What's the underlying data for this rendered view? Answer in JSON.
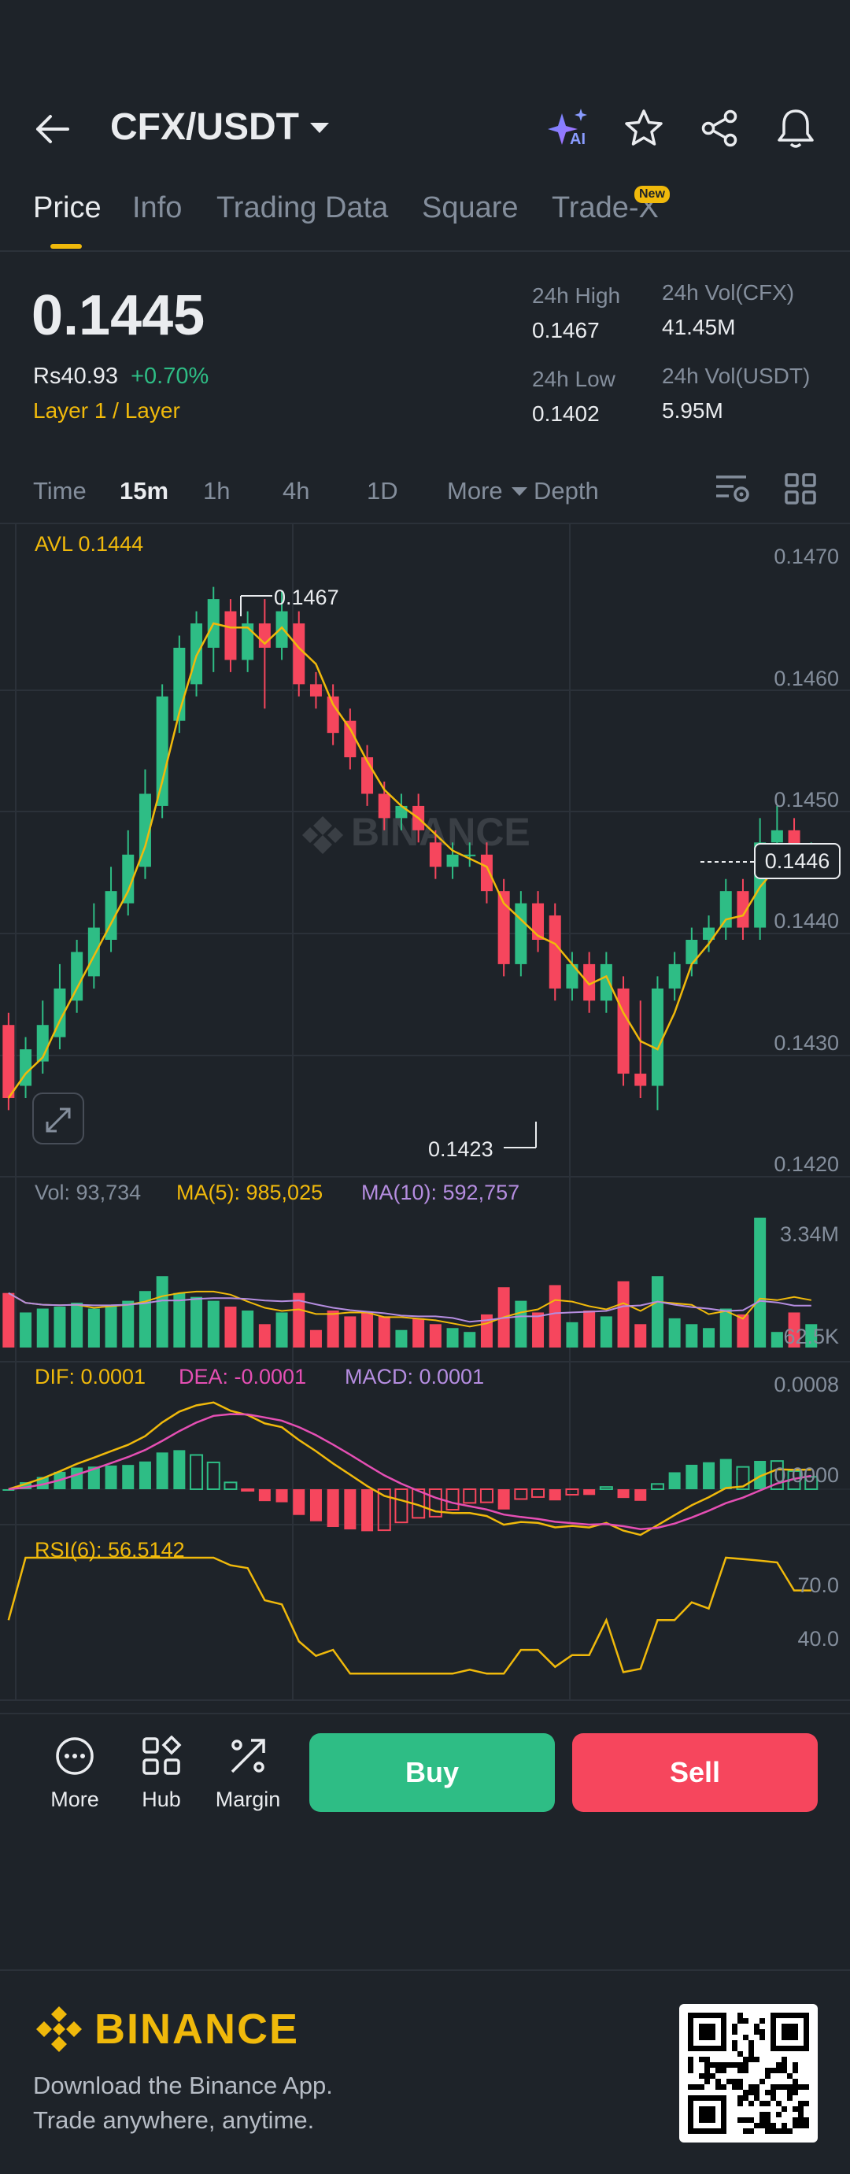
{
  "header": {
    "pair": "CFX/USDT",
    "back_icon": "arrow-left-icon",
    "ai_badge": "AI"
  },
  "tabs": [
    {
      "label": "Price",
      "active": true
    },
    {
      "label": "Info"
    },
    {
      "label": "Trading Data"
    },
    {
      "label": "Square"
    },
    {
      "label": "Trade-X",
      "badge": "New"
    }
  ],
  "price": {
    "last": "0.1445",
    "local": "Rs40.93",
    "change": "+0.70%",
    "tags": "Layer 1 / Layer"
  },
  "stats": {
    "high_label": "24h High",
    "high_value": "0.1467",
    "low_label": "24h Low",
    "low_value": "0.1402",
    "vol_base_label": "24h Vol(CFX)",
    "vol_base_value": "41.45M",
    "vol_quote_label": "24h Vol(USDT)",
    "vol_quote_value": "5.95M"
  },
  "intervals": {
    "time": "Time",
    "m15": "15m",
    "h1": "1h",
    "h4": "4h",
    "d1": "1D",
    "more": "More",
    "depth": "Depth"
  },
  "chart": {
    "avl": "AVL 0.1444",
    "price_axis": [
      "0.1470",
      "0.1460",
      "0.1450",
      "0.1440",
      "0.1430",
      "0.1420"
    ],
    "current_price_tag": "0.1446",
    "high_marker": "0.1467",
    "low_marker": "0.1423",
    "watermark": "BINANCE",
    "colors": {
      "up": "#2ebd85",
      "down": "#f6465d",
      "ma": "#f0b90b",
      "ma10": "#b58de0",
      "dea": "#e54fb4"
    }
  },
  "volume": {
    "vol": "Vol: 93,734",
    "ma5": "MA(5): 985,025",
    "ma10": "MA(10): 592,757",
    "axis_top": "3.34M",
    "axis_bottom": "62.5K"
  },
  "macd": {
    "dif": "DIF: 0.0001",
    "dea": "DEA: -0.0001",
    "macd": "MACD: 0.0001",
    "axis_top": "0.0008",
    "axis_mid": "0.0000"
  },
  "rsi": {
    "label": "RSI(6): 56.5142",
    "axis_70": "70.0",
    "axis_40": "40.0"
  },
  "bottom_bar": {
    "more": "More",
    "hub": "Hub",
    "margin": "Margin",
    "buy": "Buy",
    "sell": "Sell"
  },
  "footer": {
    "brand": "BINANCE",
    "line1": "Download the Binance App.",
    "line2": "Trade anywhere, anytime."
  },
  "candles": [
    [
      0.14315,
      0.14255,
      0.14325,
      0.14245
    ],
    [
      0.14265,
      0.14295,
      0.14305,
      0.14255
    ],
    [
      0.14285,
      0.14315,
      0.14335,
      0.14275
    ],
    [
      0.14305,
      0.14345,
      0.14365,
      0.14295
    ],
    [
      0.14335,
      0.14375,
      0.14385,
      0.14325
    ],
    [
      0.14355,
      0.14395,
      0.14415,
      0.14345
    ],
    [
      0.14385,
      0.14425,
      0.14445,
      0.14375
    ],
    [
      0.14415,
      0.14455,
      0.14475,
      0.14405
    ],
    [
      0.14445,
      0.14505,
      0.14525,
      0.14435
    ],
    [
      0.14495,
      0.14585,
      0.14595,
      0.14485
    ],
    [
      0.14565,
      0.14625,
      0.14635,
      0.14555
    ],
    [
      0.14595,
      0.14645,
      0.14655,
      0.14585
    ],
    [
      0.14625,
      0.14665,
      0.14675,
      0.14605
    ],
    [
      0.14655,
      0.14615,
      0.14665,
      0.14605
    ],
    [
      0.14615,
      0.14645,
      0.14655,
      0.14605
    ],
    [
      0.14645,
      0.14625,
      0.14665,
      0.14575
    ],
    [
      0.14625,
      0.14655,
      0.14672,
      0.14615
    ],
    [
      0.14645,
      0.14595,
      0.14655,
      0.14585
    ],
    [
      0.14595,
      0.14585,
      0.14605,
      0.14575
    ],
    [
      0.14585,
      0.14555,
      0.14595,
      0.14545
    ],
    [
      0.14565,
      0.14535,
      0.14575,
      0.14525
    ],
    [
      0.14535,
      0.14505,
      0.14545,
      0.14495
    ],
    [
      0.14505,
      0.14485,
      0.14515,
      0.14475
    ],
    [
      0.14485,
      0.14495,
      0.14505,
      0.14475
    ],
    [
      0.14495,
      0.14475,
      0.14505,
      0.14465
    ],
    [
      0.14465,
      0.14445,
      0.14475,
      0.14435
    ],
    [
      0.14445,
      0.14455,
      0.14465,
      0.14435
    ],
    [
      0.14455,
      0.14455,
      0.14465,
      0.14445
    ],
    [
      0.14455,
      0.14425,
      0.14465,
      0.14415
    ],
    [
      0.14425,
      0.14365,
      0.14435,
      0.14355
    ],
    [
      0.14365,
      0.14415,
      0.14425,
      0.14355
    ],
    [
      0.14415,
      0.14385,
      0.14425,
      0.14375
    ],
    [
      0.14405,
      0.14345,
      0.14415,
      0.14335
    ],
    [
      0.14345,
      0.14365,
      0.14375,
      0.14335
    ],
    [
      0.14365,
      0.14335,
      0.14375,
      0.14325
    ],
    [
      0.14335,
      0.14365,
      0.14375,
      0.14325
    ],
    [
      0.14345,
      0.14275,
      0.14355,
      0.14265
    ],
    [
      0.14275,
      0.14265,
      0.14335,
      0.14255
    ],
    [
      0.14265,
      0.14345,
      0.14355,
      0.14245
    ],
    [
      0.14345,
      0.14365,
      0.14375,
      0.14335
    ],
    [
      0.14365,
      0.14385,
      0.14395,
      0.14355
    ],
    [
      0.14385,
      0.14395,
      0.14405,
      0.14375
    ],
    [
      0.14395,
      0.14425,
      0.14435,
      0.14385
    ],
    [
      0.14425,
      0.14395,
      0.14435,
      0.14385
    ],
    [
      0.14395,
      0.14465,
      0.14485,
      0.14385
    ],
    [
      0.14465,
      0.14475,
      0.14495,
      0.14455
    ],
    [
      0.14475,
      0.14445,
      0.14485,
      0.14435
    ],
    [
      0.14445,
      0.14455,
      0.14465,
      0.14435
    ]
  ]
}
